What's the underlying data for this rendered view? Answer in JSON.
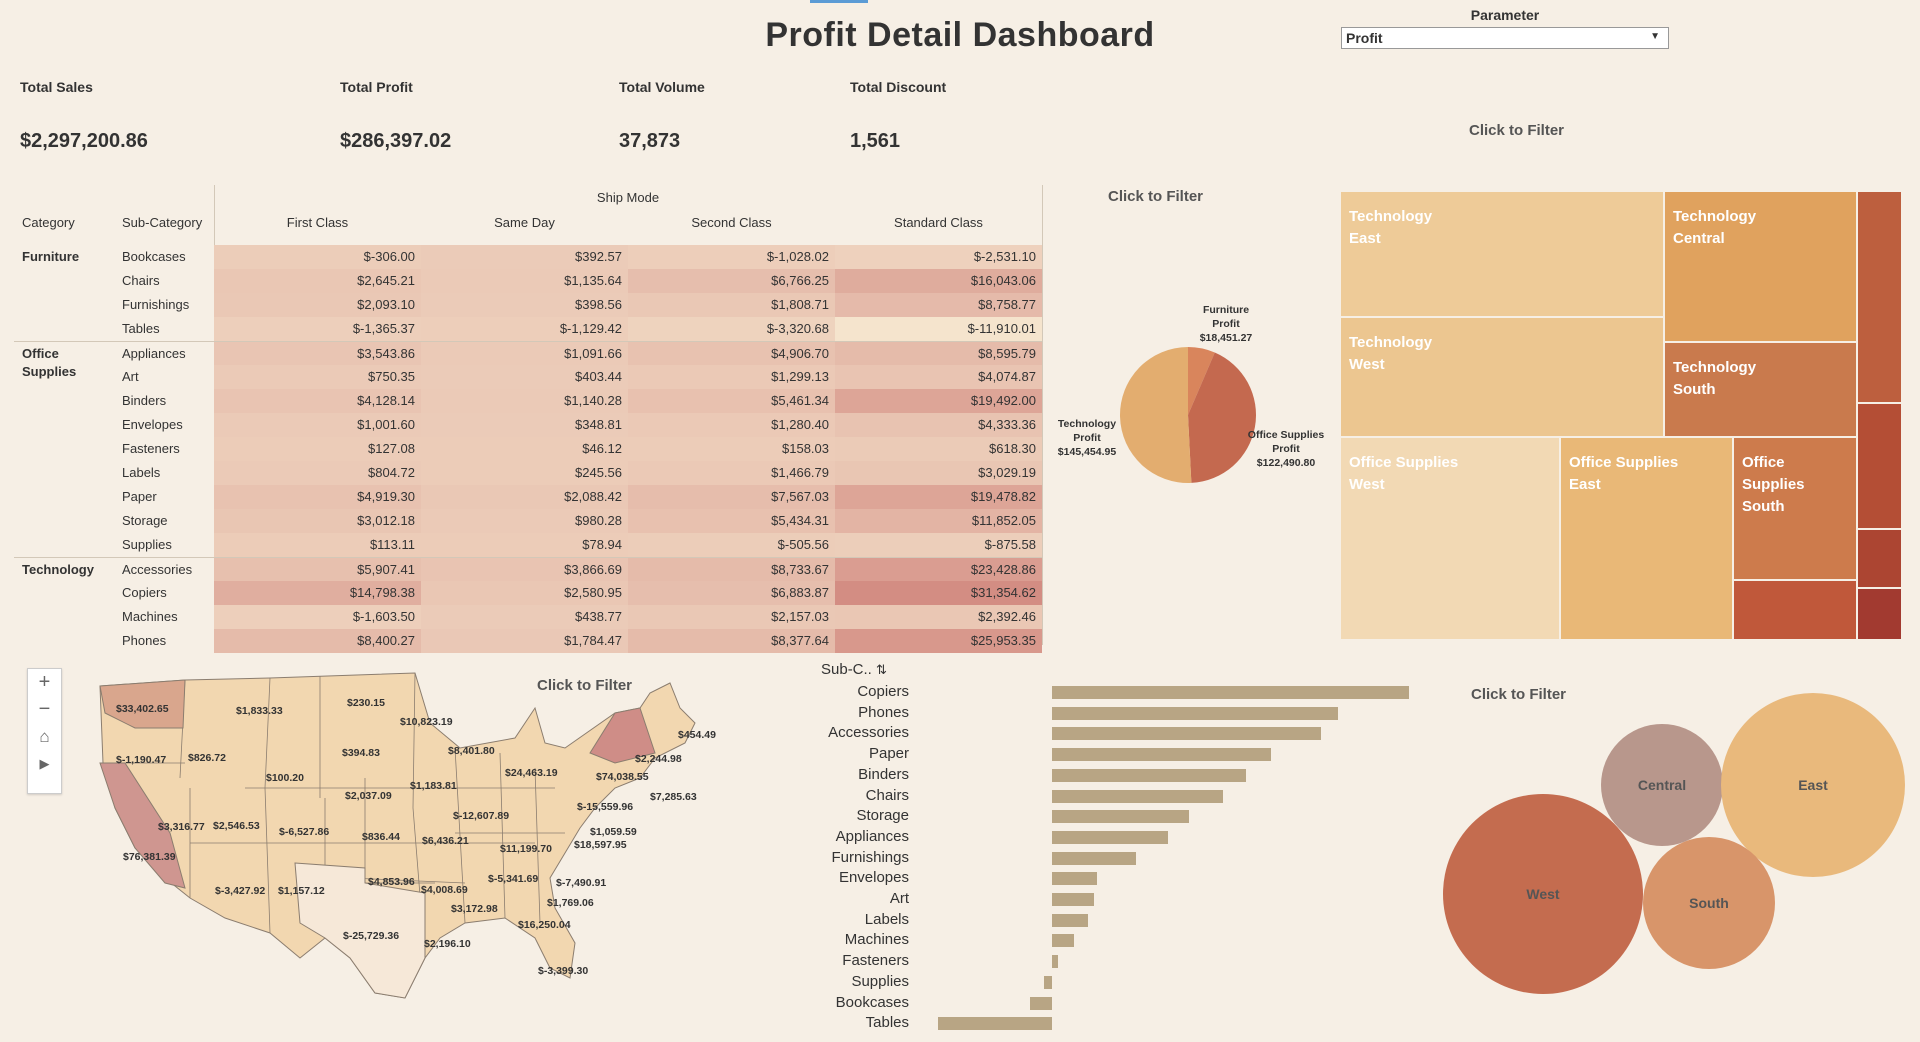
{
  "title": "Profit Detail Dashboard",
  "parameter": {
    "label": "Parameter",
    "value": "Profit"
  },
  "kpis": [
    {
      "label": "Total Sales",
      "value": "$2,297,200.86"
    },
    {
      "label": "Total Profit",
      "value": "$286,397.02"
    },
    {
      "label": "Total Volume",
      "value": "37,873"
    },
    {
      "label": "Total Discount",
      "value": "1,561"
    }
  ],
  "click_to_filter": "Click to Filter",
  "crosstab": {
    "col_group": "Ship Mode",
    "row_headers": [
      "Category",
      "Sub-Category"
    ],
    "columns": [
      "First Class",
      "Same Day",
      "Second Class",
      "Standard Class"
    ],
    "categories": [
      {
        "name": "Furniture",
        "rows": [
          {
            "sub": "Bookcases",
            "values": [
              "$-306.00",
              "$392.57",
              "$-1,028.02",
              "$-2,531.10"
            ],
            "nums": [
              -306.0,
              392.57,
              -1028.02,
              -2531.1
            ]
          },
          {
            "sub": "Chairs",
            "values": [
              "$2,645.21",
              "$1,135.64",
              "$6,766.25",
              "$16,043.06"
            ],
            "nums": [
              2645.21,
              1135.64,
              6766.25,
              16043.06
            ]
          },
          {
            "sub": "Furnishings",
            "values": [
              "$2,093.10",
              "$398.56",
              "$1,808.71",
              "$8,758.77"
            ],
            "nums": [
              2093.1,
              398.56,
              1808.71,
              8758.77
            ]
          },
          {
            "sub": "Tables",
            "values": [
              "$-1,365.37",
              "$-1,129.42",
              "$-3,320.68",
              "$-11,910.01"
            ],
            "nums": [
              -1365.37,
              -1129.42,
              -3320.68,
              -11910.01
            ]
          }
        ]
      },
      {
        "name": "Office Supplies",
        "rows": [
          {
            "sub": "Appliances",
            "values": [
              "$3,543.86",
              "$1,091.66",
              "$4,906.70",
              "$8,595.79"
            ],
            "nums": [
              3543.86,
              1091.66,
              4906.7,
              8595.79
            ]
          },
          {
            "sub": "Art",
            "values": [
              "$750.35",
              "$403.44",
              "$1,299.13",
              "$4,074.87"
            ],
            "nums": [
              750.35,
              403.44,
              1299.13,
              4074.87
            ]
          },
          {
            "sub": "Binders",
            "values": [
              "$4,128.14",
              "$1,140.28",
              "$5,461.34",
              "$19,492.00"
            ],
            "nums": [
              4128.14,
              1140.28,
              5461.34,
              19492.0
            ]
          },
          {
            "sub": "Envelopes",
            "values": [
              "$1,001.60",
              "$348.81",
              "$1,280.40",
              "$4,333.36"
            ],
            "nums": [
              1001.6,
              348.81,
              1280.4,
              4333.36
            ]
          },
          {
            "sub": "Fasteners",
            "values": [
              "$127.08",
              "$46.12",
              "$158.03",
              "$618.30"
            ],
            "nums": [
              127.08,
              46.12,
              158.03,
              618.3
            ]
          },
          {
            "sub": "Labels",
            "values": [
              "$804.72",
              "$245.56",
              "$1,466.79",
              "$3,029.19"
            ],
            "nums": [
              804.72,
              245.56,
              1466.79,
              3029.19
            ]
          },
          {
            "sub": "Paper",
            "values": [
              "$4,919.30",
              "$2,088.42",
              "$7,567.03",
              "$19,478.82"
            ],
            "nums": [
              4919.3,
              2088.42,
              7567.03,
              19478.82
            ]
          },
          {
            "sub": "Storage",
            "values": [
              "$3,012.18",
              "$980.28",
              "$5,434.31",
              "$11,852.05"
            ],
            "nums": [
              3012.18,
              980.28,
              5434.31,
              11852.05
            ]
          },
          {
            "sub": "Supplies",
            "values": [
              "$113.11",
              "$78.94",
              "$-505.56",
              "$-875.58"
            ],
            "nums": [
              113.11,
              78.94,
              -505.56,
              -875.58
            ]
          }
        ]
      },
      {
        "name": "Technology",
        "rows": [
          {
            "sub": "Accessories",
            "values": [
              "$5,907.41",
              "$3,866.69",
              "$8,733.67",
              "$23,428.86"
            ],
            "nums": [
              5907.41,
              3866.69,
              8733.67,
              23428.86
            ]
          },
          {
            "sub": "Copiers",
            "values": [
              "$14,798.38",
              "$2,580.95",
              "$6,883.87",
              "$31,354.62"
            ],
            "nums": [
              14798.38,
              2580.95,
              6883.87,
              31354.62
            ]
          },
          {
            "sub": "Machines",
            "values": [
              "$-1,603.50",
              "$438.77",
              "$2,157.03",
              "$2,392.46"
            ],
            "nums": [
              -1603.5,
              438.77,
              2157.03,
              2392.46
            ]
          },
          {
            "sub": "Phones",
            "values": [
              "$8,400.27",
              "$1,784.47",
              "$8,377.64",
              "$25,953.35"
            ],
            "nums": [
              8400.27,
              1784.47,
              8377.64,
              25953.35
            ]
          }
        ]
      }
    ]
  },
  "pie": {
    "slices": [
      {
        "line1": "Furniture",
        "line2": "Profit",
        "value_label": "$18,451.27",
        "value": 18451.27,
        "color": "#d9855c"
      },
      {
        "line1": "Office Supplies",
        "line2": "Profit",
        "value_label": "$122,490.80",
        "value": 122490.8,
        "color": "#c4694f"
      },
      {
        "line1": "Technology",
        "line2": "Profit",
        "value_label": "$145,454.95",
        "value": 145454.95,
        "color": "#e3ad6f"
      }
    ]
  },
  "treemap": [
    {
      "line1": "Technology",
      "line2": "East",
      "color": "#eecb98"
    },
    {
      "line1": "Technology",
      "line2": "Central",
      "color": "#e0a25e"
    },
    {
      "line1": "Technology",
      "line2": "West",
      "color": "#ecc690"
    },
    {
      "line1": "Technology",
      "line2": "South",
      "color": "#c97a4d"
    },
    {
      "line1": "Office Supplies",
      "line2": "West",
      "color": "#f2d9b4"
    },
    {
      "line1": "Office Supplies",
      "line2": "East",
      "color": "#e9b877"
    },
    {
      "line1": "Office Supplies",
      "line2": "South",
      "color": "#cd7b4c"
    }
  ],
  "map": {
    "values": [
      "$33,402.65",
      "$1,833.33",
      "$230.15",
      "$10,823.19",
      "$-1,190.47",
      "$826.72",
      "$100.20",
      "$394.83",
      "$8,401.80",
      "$24,463.19",
      "$2,244.98",
      "$454.49",
      "$74,038.55",
      "$7,285.63",
      "$2,037.09",
      "$1,183.81",
      "$3,316.77",
      "$2,546.53",
      "$-6,527.86",
      "$836.44",
      "$6,436.21",
      "$-12,607.89",
      "$-15,559.96",
      "$1,059.59",
      "$18,597.95",
      "$11,199.70",
      "$76,381.39",
      "$4,853.96",
      "$-5,341.69",
      "$-7,490.91",
      "$4,008.69",
      "$-3,427.92",
      "$1,157.12",
      "$3,172.98",
      "$1,769.06",
      "$16,250.04",
      "$-25,729.36",
      "$2,196.10",
      "$-3,399.30"
    ],
    "controls": [
      "+",
      "−",
      "⌂",
      "▶"
    ]
  },
  "bar_header": "Sub-C..",
  "chart_data": {
    "type": "bar",
    "categories": [
      "Copiers",
      "Phones",
      "Accessories",
      "Paper",
      "Binders",
      "Chairs",
      "Storage",
      "Appliances",
      "Furnishings",
      "Envelopes",
      "Art",
      "Labels",
      "Machines",
      "Fasteners",
      "Supplies",
      "Bookcases",
      "Tables"
    ],
    "values": [
      55618,
      44516,
      41937,
      34054,
      30222,
      26590,
      21279,
      18138,
      13059,
      6964,
      6528,
      5546,
      3385,
      950,
      -1189,
      -3473,
      -17725
    ],
    "color": "#b8a584"
  },
  "bubbles": [
    {
      "label": "Central",
      "color": "#b8978c"
    },
    {
      "label": "East",
      "color": "#e9b97c"
    },
    {
      "label": "West",
      "color": "#c46c4f"
    },
    {
      "label": "South",
      "color": "#d8956a"
    }
  ]
}
